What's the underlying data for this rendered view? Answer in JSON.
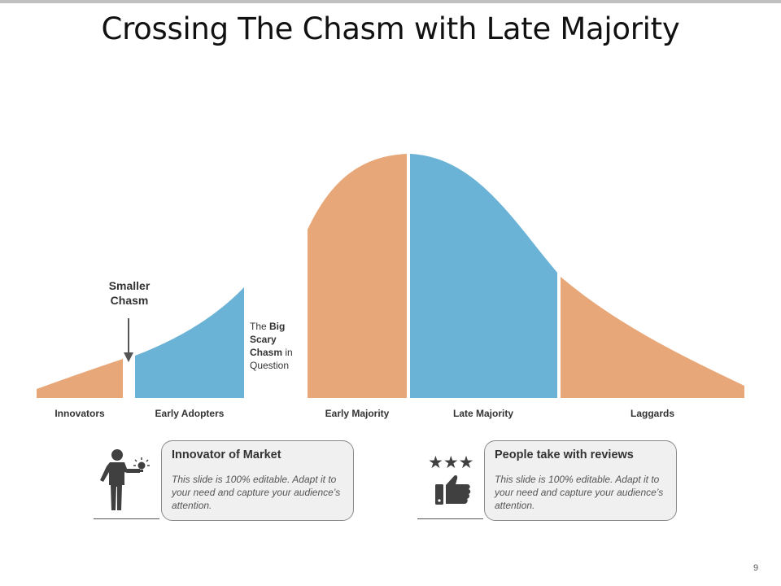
{
  "slide": {
    "title": "Crossing The Chasm with Late Majority",
    "page_number": "9"
  },
  "colors": {
    "orange": "#E8A778",
    "blue": "#6BB3D6",
    "card_bg": "#F0F0F0",
    "icon": "#404040"
  },
  "segments": [
    {
      "label": "Innovators",
      "color": "orange"
    },
    {
      "label": "Early Adopters",
      "color": "blue"
    },
    {
      "label": "Early Majority",
      "color": "orange"
    },
    {
      "label": "Late Majority",
      "color": "blue"
    },
    {
      "label": "Laggards",
      "color": "orange"
    }
  ],
  "annotations": {
    "smaller_chasm_line1": "Smaller",
    "smaller_chasm_line2": "Chasm",
    "big_chasm": {
      "t1": "The ",
      "b1": "Big",
      "b2": "Scary",
      "b3": "Chasm",
      "t2": " in",
      "t3": "Question"
    }
  },
  "cards": [
    {
      "title": "Innovator of Market",
      "body": "This slide is 100% editable. Adapt it to your need and capture your audience’s attention.",
      "icon": "businessman-idea-icon"
    },
    {
      "title": "People take with reviews",
      "body": "This slide is 100% editable. Adapt it to your need and capture your audience’s attention.",
      "icon": "thumbs-up-stars-icon",
      "stars": "★★★"
    }
  ]
}
